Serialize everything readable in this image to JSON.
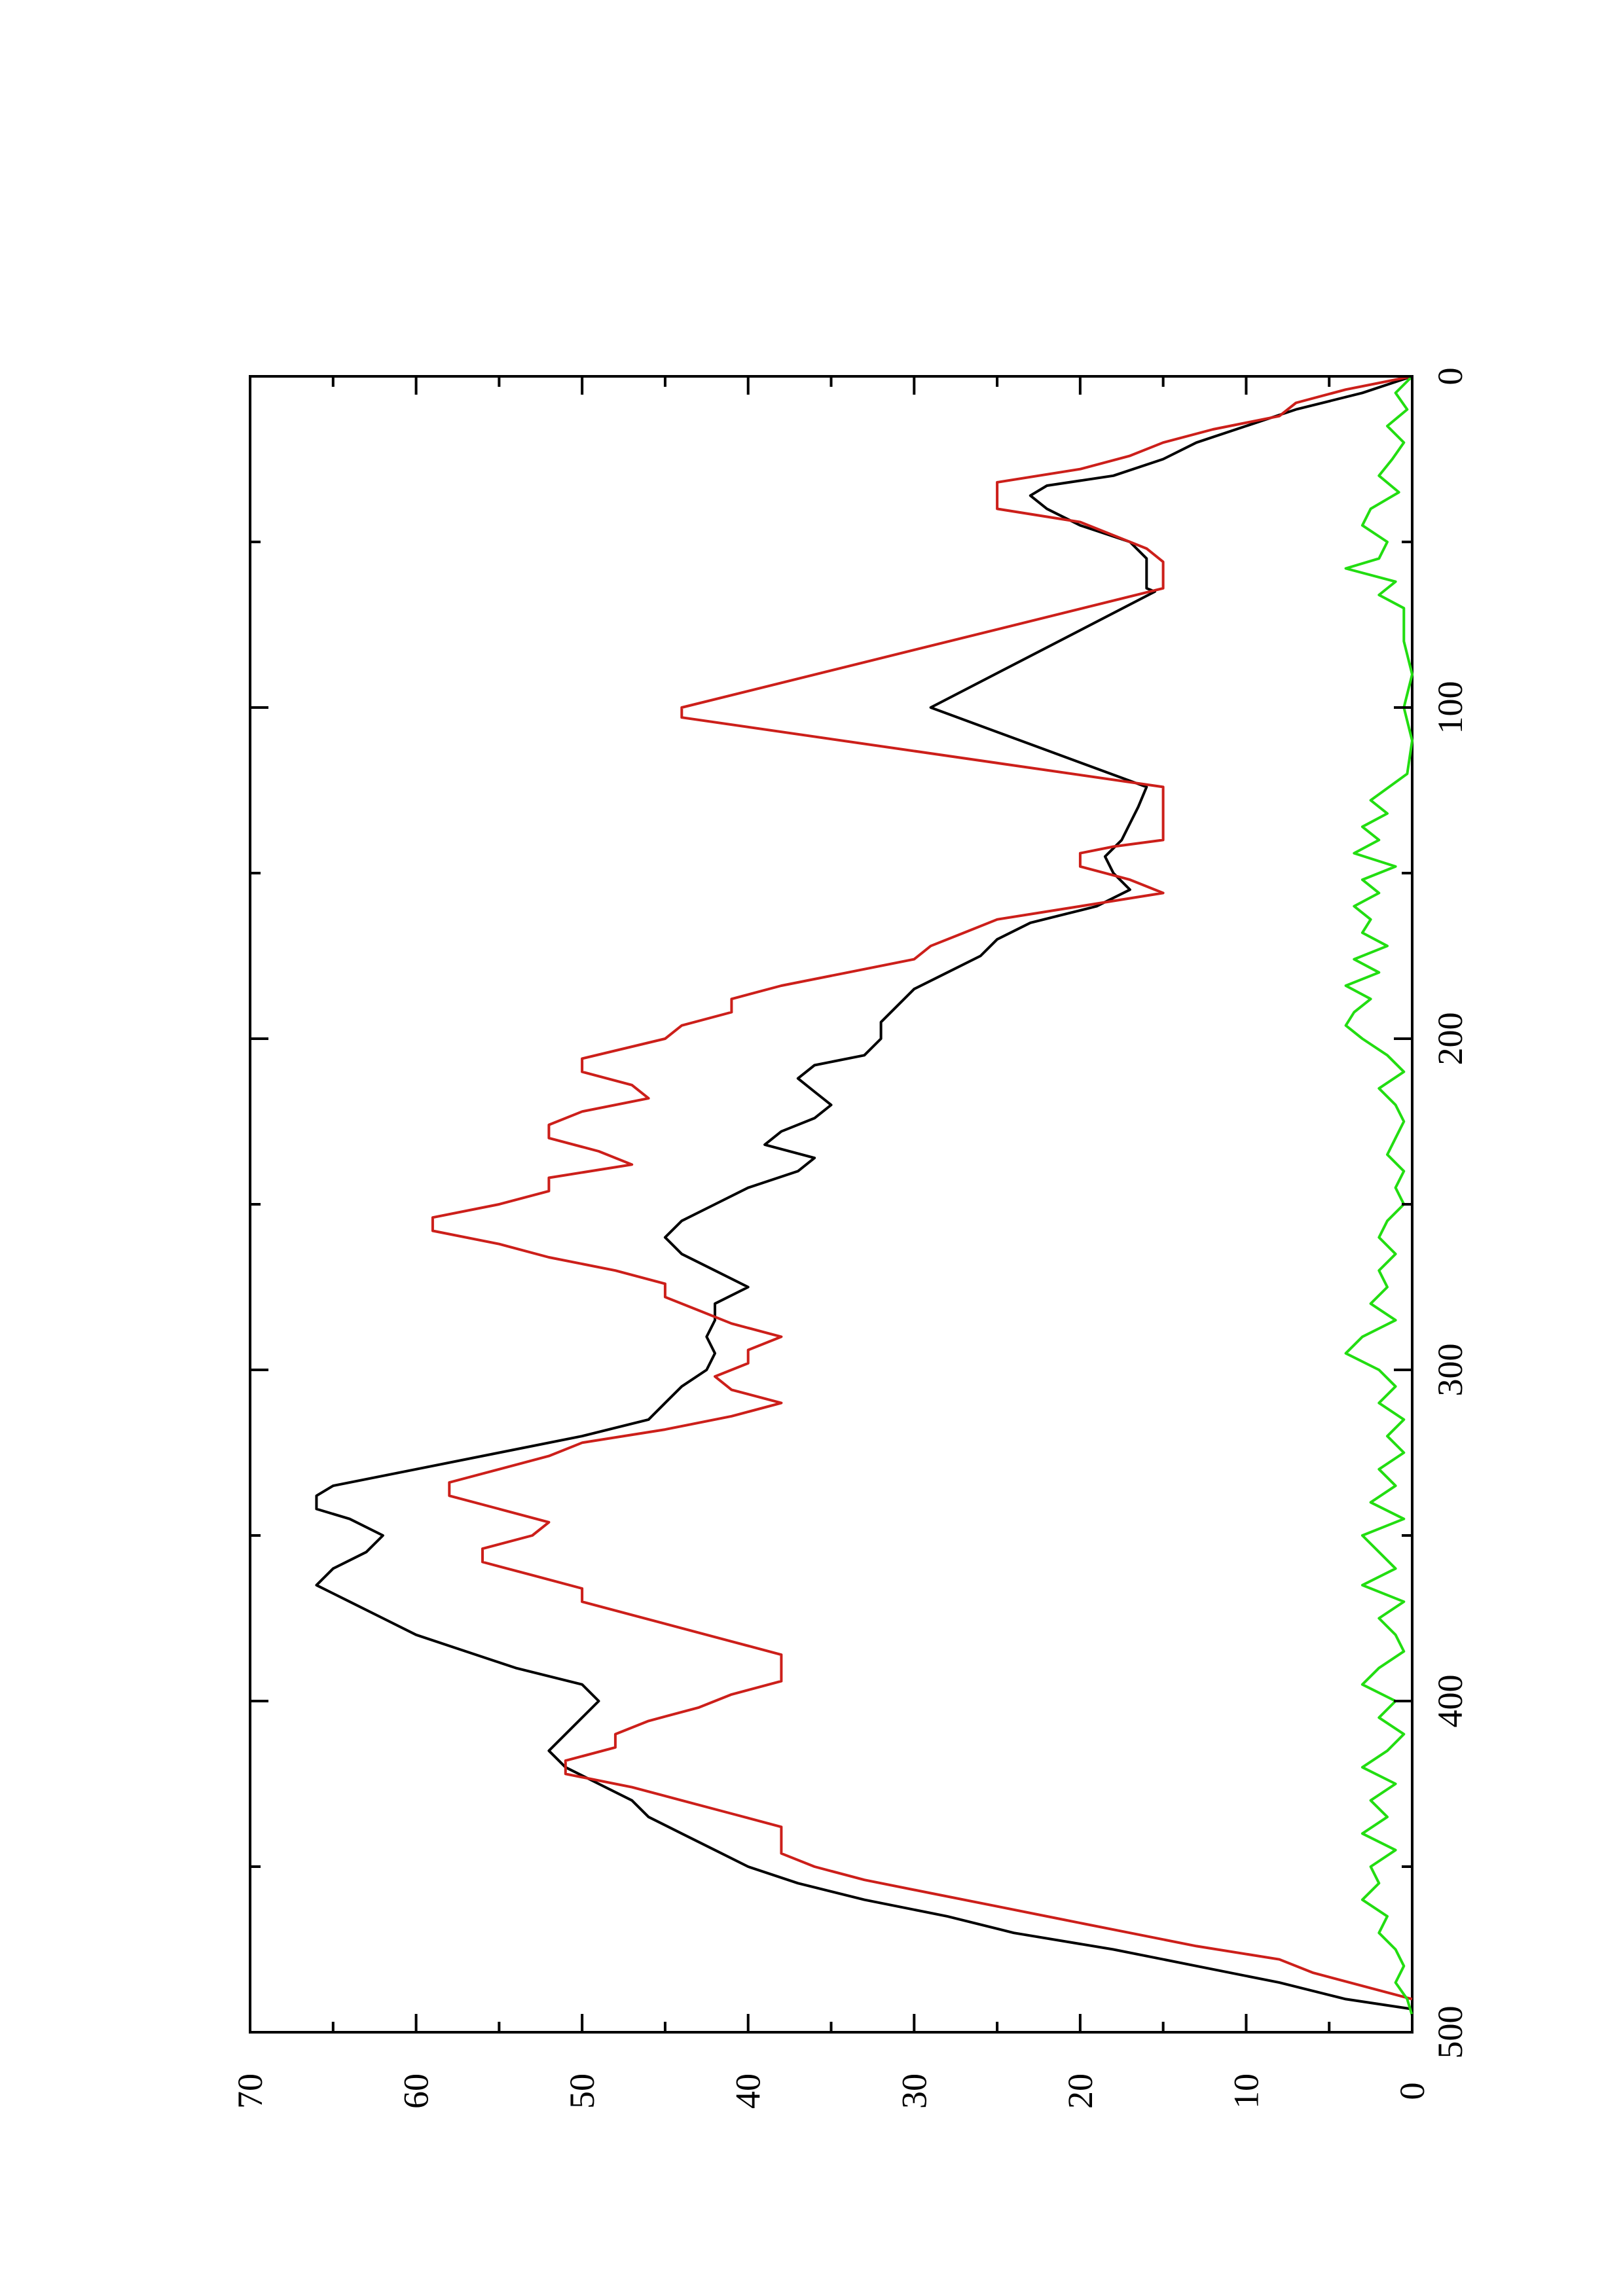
{
  "chart_data": {
    "type": "line",
    "orientation": "rotated-90-clockwise",
    "title": "",
    "xlabel": "",
    "ylabel": "",
    "xlim": [
      0,
      500
    ],
    "ylim": [
      0,
      70
    ],
    "x_ticks": [
      "0",
      "100",
      "200",
      "300",
      "400",
      "500"
    ],
    "y_ticks": [
      "0",
      "10",
      "20",
      "30",
      "40",
      "50",
      "60",
      "70"
    ],
    "grid": false,
    "legend": "none",
    "series": [
      {
        "color": "#000000",
        "points": [
          [
            0,
            0
          ],
          [
            5,
            3
          ],
          [
            10,
            7
          ],
          [
            15,
            10
          ],
          [
            20,
            13
          ],
          [
            25,
            15
          ],
          [
            30,
            18
          ],
          [
            33,
            22
          ],
          [
            36,
            23
          ],
          [
            40,
            22
          ],
          [
            45,
            20
          ],
          [
            50,
            17
          ],
          [
            55,
            16
          ],
          [
            60,
            16
          ],
          [
            64,
            16
          ],
          [
            65,
            15.5
          ],
          [
            100,
            29
          ],
          [
            124,
            16
          ],
          [
            130,
            16.5
          ],
          [
            135,
            17
          ],
          [
            140,
            17.5
          ],
          [
            145,
            18.5
          ],
          [
            150,
            18
          ],
          [
            155,
            17
          ],
          [
            160,
            19
          ],
          [
            165,
            23
          ],
          [
            170,
            25
          ],
          [
            175,
            26
          ],
          [
            180,
            28
          ],
          [
            185,
            30
          ],
          [
            190,
            31
          ],
          [
            195,
            32
          ],
          [
            200,
            32
          ],
          [
            205,
            33
          ],
          [
            208,
            36
          ],
          [
            212,
            37
          ],
          [
            216,
            36
          ],
          [
            220,
            35
          ],
          [
            224,
            36
          ],
          [
            228,
            38
          ],
          [
            232,
            39
          ],
          [
            236,
            36
          ],
          [
            240,
            37
          ],
          [
            245,
            40
          ],
          [
            250,
            42
          ],
          [
            255,
            44
          ],
          [
            260,
            45
          ],
          [
            265,
            44
          ],
          [
            270,
            42
          ],
          [
            275,
            40
          ],
          [
            280,
            42
          ],
          [
            285,
            42
          ],
          [
            290,
            42.5
          ],
          [
            295,
            42
          ],
          [
            300,
            42.5
          ],
          [
            305,
            44
          ],
          [
            310,
            45
          ],
          [
            315,
            46
          ],
          [
            320,
            50
          ],
          [
            325,
            55
          ],
          [
            330,
            60
          ],
          [
            335,
            65
          ],
          [
            338,
            66
          ],
          [
            342,
            66
          ],
          [
            345,
            64
          ],
          [
            350,
            62
          ],
          [
            355,
            63
          ],
          [
            360,
            65
          ],
          [
            365,
            66
          ],
          [
            370,
            64
          ],
          [
            375,
            62
          ],
          [
            380,
            60
          ],
          [
            385,
            57
          ],
          [
            390,
            54
          ],
          [
            395,
            50
          ],
          [
            400,
            49
          ],
          [
            405,
            50
          ],
          [
            410,
            51
          ],
          [
            415,
            52
          ],
          [
            420,
            51
          ],
          [
            425,
            49
          ],
          [
            430,
            47
          ],
          [
            435,
            46
          ],
          [
            440,
            44
          ],
          [
            445,
            42
          ],
          [
            450,
            40
          ],
          [
            455,
            37
          ],
          [
            460,
            33
          ],
          [
            465,
            28
          ],
          [
            470,
            24
          ],
          [
            475,
            18
          ],
          [
            480,
            13
          ],
          [
            485,
            8
          ],
          [
            490,
            4
          ],
          [
            493,
            0
          ]
        ]
      },
      {
        "color": "#cc1f1a",
        "points": [
          [
            0,
            0
          ],
          [
            4,
            4
          ],
          [
            8,
            7
          ],
          [
            12,
            8
          ],
          [
            16,
            12
          ],
          [
            20,
            15
          ],
          [
            24,
            17
          ],
          [
            28,
            20
          ],
          [
            32,
            25
          ],
          [
            36,
            25
          ],
          [
            40,
            25
          ],
          [
            44,
            20
          ],
          [
            48,
            18
          ],
          [
            52,
            16
          ],
          [
            56,
            15
          ],
          [
            60,
            15
          ],
          [
            64,
            15
          ],
          [
            100,
            44
          ],
          [
            103,
            44
          ],
          [
            124,
            15
          ],
          [
            140,
            15
          ],
          [
            142,
            18
          ],
          [
            144,
            20
          ],
          [
            148,
            20
          ],
          [
            152,
            17
          ],
          [
            156,
            15
          ],
          [
            160,
            20
          ],
          [
            164,
            25
          ],
          [
            168,
            27
          ],
          [
            172,
            29
          ],
          [
            176,
            30
          ],
          [
            180,
            34
          ],
          [
            184,
            38
          ],
          [
            188,
            41
          ],
          [
            192,
            41
          ],
          [
            196,
            44
          ],
          [
            200,
            45
          ],
          [
            206,
            50
          ],
          [
            210,
            50
          ],
          [
            214,
            47
          ],
          [
            218,
            46
          ],
          [
            222,
            50
          ],
          [
            226,
            52
          ],
          [
            230,
            52
          ],
          [
            234,
            49
          ],
          [
            238,
            47
          ],
          [
            242,
            52
          ],
          [
            246,
            52
          ],
          [
            250,
            55
          ],
          [
            254,
            59
          ],
          [
            258,
            59
          ],
          [
            262,
            55
          ],
          [
            266,
            52
          ],
          [
            270,
            48
          ],
          [
            274,
            45
          ],
          [
            278,
            45
          ],
          [
            282,
            43
          ],
          [
            286,
            41
          ],
          [
            290,
            38
          ],
          [
            294,
            40
          ],
          [
            298,
            40
          ],
          [
            302,
            42
          ],
          [
            306,
            41
          ],
          [
            310,
            38
          ],
          [
            314,
            41
          ],
          [
            318,
            45
          ],
          [
            322,
            50
          ],
          [
            326,
            52
          ],
          [
            330,
            55
          ],
          [
            334,
            58
          ],
          [
            338,
            58
          ],
          [
            342,
            55
          ],
          [
            346,
            52
          ],
          [
            350,
            53
          ],
          [
            354,
            56
          ],
          [
            358,
            56
          ],
          [
            362,
            53
          ],
          [
            366,
            50
          ],
          [
            370,
            50
          ],
          [
            374,
            47
          ],
          [
            378,
            44
          ],
          [
            382,
            41
          ],
          [
            386,
            38
          ],
          [
            390,
            38
          ],
          [
            394,
            38
          ],
          [
            398,
            41
          ],
          [
            402,
            43
          ],
          [
            406,
            46
          ],
          [
            410,
            48
          ],
          [
            414,
            48
          ],
          [
            418,
            51
          ],
          [
            422,
            51
          ],
          [
            426,
            47
          ],
          [
            430,
            44
          ],
          [
            434,
            41
          ],
          [
            438,
            38
          ],
          [
            442,
            38
          ],
          [
            446,
            38
          ],
          [
            450,
            36
          ],
          [
            454,
            33
          ],
          [
            458,
            29
          ],
          [
            462,
            25
          ],
          [
            466,
            21
          ],
          [
            470,
            17
          ],
          [
            474,
            13
          ],
          [
            478,
            8
          ],
          [
            482,
            6
          ],
          [
            486,
            3
          ],
          [
            490,
            0
          ]
        ]
      },
      {
        "color": "#22dd11",
        "points": [
          [
            0,
            0
          ],
          [
            5,
            1
          ],
          [
            10,
            0.3
          ],
          [
            15,
            1.5
          ],
          [
            20,
            0.5
          ],
          [
            25,
            1.2
          ],
          [
            30,
            2
          ],
          [
            35,
            0.8
          ],
          [
            40,
            2.5
          ],
          [
            45,
            3
          ],
          [
            50,
            1.5
          ],
          [
            55,
            2
          ],
          [
            58,
            4
          ],
          [
            62,
            1
          ],
          [
            66,
            2
          ],
          [
            70,
            0.5
          ],
          [
            80,
            0.5
          ],
          [
            90,
            0
          ],
          [
            100,
            0.5
          ],
          [
            110,
            0
          ],
          [
            120,
            0.3
          ],
          [
            128,
            2.5
          ],
          [
            132,
            1.5
          ],
          [
            136,
            3
          ],
          [
            140,
            2
          ],
          [
            144,
            3.5
          ],
          [
            148,
            1
          ],
          [
            152,
            3
          ],
          [
            156,
            2
          ],
          [
            160,
            3.5
          ],
          [
            164,
            2.5
          ],
          [
            168,
            3
          ],
          [
            172,
            1.5
          ],
          [
            176,
            3.5
          ],
          [
            180,
            2
          ],
          [
            184,
            4
          ],
          [
            188,
            2.5
          ],
          [
            192,
            3.5
          ],
          [
            196,
            4
          ],
          [
            200,
            3
          ],
          [
            205,
            1.5
          ],
          [
            210,
            0.5
          ],
          [
            215,
            2
          ],
          [
            220,
            1
          ],
          [
            225,
            0.5
          ],
          [
            230,
            1
          ],
          [
            235,
            1.5
          ],
          [
            240,
            0.5
          ],
          [
            245,
            1
          ],
          [
            250,
            0.5
          ],
          [
            255,
            1.5
          ],
          [
            260,
            2
          ],
          [
            265,
            1
          ],
          [
            270,
            2
          ],
          [
            275,
            1.5
          ],
          [
            280,
            2.5
          ],
          [
            285,
            1
          ],
          [
            290,
            3
          ],
          [
            295,
            4
          ],
          [
            300,
            2
          ],
          [
            305,
            1
          ],
          [
            310,
            2
          ],
          [
            315,
            0.5
          ],
          [
            320,
            1.5
          ],
          [
            325,
            0.5
          ],
          [
            330,
            2
          ],
          [
            335,
            1
          ],
          [
            340,
            2.5
          ],
          [
            345,
            0.5
          ],
          [
            350,
            3
          ],
          [
            355,
            2
          ],
          [
            360,
            1
          ],
          [
            365,
            3
          ],
          [
            370,
            0.5
          ],
          [
            375,
            2
          ],
          [
            380,
            1
          ],
          [
            385,
            0.5
          ],
          [
            390,
            2
          ],
          [
            395,
            3
          ],
          [
            400,
            1
          ],
          [
            405,
            2
          ],
          [
            410,
            0.5
          ],
          [
            415,
            1.5
          ],
          [
            420,
            3
          ],
          [
            425,
            1
          ],
          [
            430,
            2.5
          ],
          [
            435,
            1.5
          ],
          [
            440,
            3
          ],
          [
            445,
            1
          ],
          [
            450,
            2.5
          ],
          [
            455,
            2
          ],
          [
            460,
            3
          ],
          [
            465,
            1.5
          ],
          [
            470,
            2
          ],
          [
            475,
            1
          ],
          [
            480,
            0.5
          ],
          [
            485,
            1
          ],
          [
            490,
            0.3
          ],
          [
            495,
            0
          ],
          [
            500,
            0
          ]
        ]
      }
    ]
  }
}
